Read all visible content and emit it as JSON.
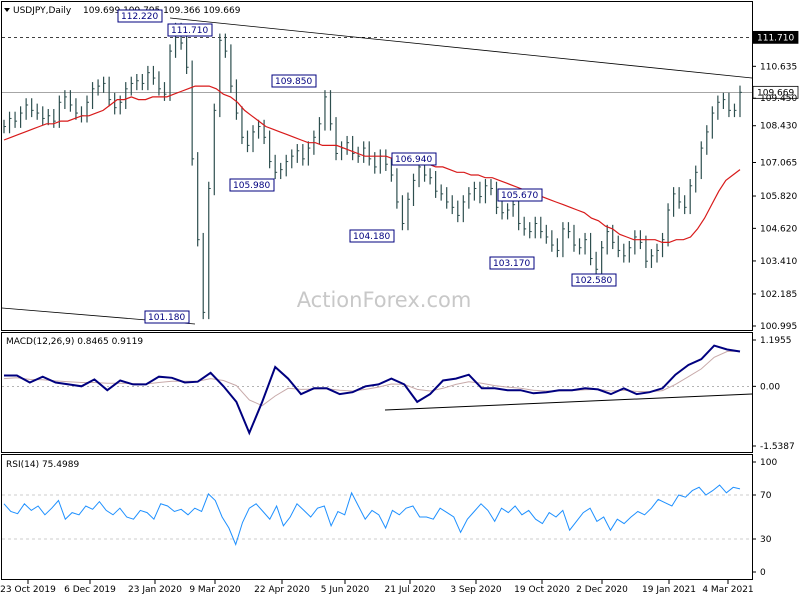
{
  "header": {
    "symbol": "USDJPY,Daily",
    "ohlc": "109.699 109.795 109.366 109.669"
  },
  "watermark": "ActionForex.com",
  "colors": {
    "price": "#2e4f4f",
    "ema": "#d81a1a",
    "macd": "#00007f",
    "signal": "#c8aaaa",
    "rsi": "#1e90ff",
    "trendline": "#000000",
    "price_label_bg": "#000000",
    "current_label_bg": "#ffffff"
  },
  "chart_data": [
    {
      "type": "line",
      "panel": "price",
      "title": "USDJPY,Daily",
      "ylim": [
        100.995,
        112.8
      ],
      "y_ticks": [
        "110.635",
        "109.450",
        "108.430",
        "107.065",
        "105.820",
        "104.620",
        "103.410",
        "102.185",
        "100.995"
      ],
      "x_ticks": [
        "23 Oct 2019",
        "6 Dec 2019",
        "23 Jan 2020",
        "9 Mar 2020",
        "22 Apr 2020",
        "5 Jun 2020",
        "21 Jul 2020",
        "3 Sep 2020",
        "19 Oct 2020",
        "2 Dec 2020",
        "19 Jan 2021",
        "4 Mar 2021"
      ],
      "series": [
        {
          "values": [
            108.4,
            108.7,
            108.6,
            108.9,
            109.2,
            109.0,
            108.9,
            108.7,
            108.8,
            108.6,
            109.3,
            109.5,
            109.2,
            108.9,
            108.8,
            109.3,
            109.8,
            109.9,
            110.0,
            109.4,
            109.1,
            109.3,
            109.8,
            110.0,
            110.1,
            110.0,
            110.4,
            110.2,
            109.8,
            109.6,
            111.2,
            112.0,
            111.5,
            110.6,
            107.2,
            104.2,
            101.5,
            106.1,
            109.0,
            111.6,
            111.2,
            109.9,
            108.9,
            108.0,
            107.7,
            108.2,
            108.4,
            108.0,
            107.1,
            106.7,
            106.8,
            107.1,
            107.3,
            107.5,
            107.2,
            107.6,
            108.0,
            108.5,
            109.5,
            108.5,
            107.4,
            107.6,
            107.8,
            107.4,
            107.3,
            107.6,
            107.2,
            106.9,
            107.3,
            107.0,
            106.6,
            105.6,
            104.8,
            105.7,
            106.4,
            106.9,
            106.6,
            106.5,
            106.0,
            105.9,
            105.6,
            105.4,
            105.1,
            105.6,
            105.9,
            106.1,
            105.8,
            106.2,
            106.1,
            105.4,
            105.2,
            105.3,
            105.5,
            104.8,
            104.6,
            104.5,
            104.8,
            104.5,
            104.3,
            104.0,
            103.8,
            104.6,
            104.5,
            104.0,
            103.9,
            104.2,
            103.5,
            103.1,
            103.9,
            104.5,
            104.1,
            103.8,
            103.6,
            103.9,
            104.3,
            104.1,
            103.4,
            103.6,
            103.8,
            104.2,
            105.3,
            105.9,
            105.6,
            105.4,
            106.2,
            106.7,
            107.6,
            108.2,
            108.9,
            109.3,
            109.4,
            109.0,
            109.0,
            109.669
          ],
          "style": "ohlc-bars"
        },
        {
          "values": [
            107.9,
            108.0,
            108.1,
            108.2,
            108.3,
            108.4,
            108.5,
            108.5,
            108.6,
            108.6,
            108.7,
            108.8,
            108.8,
            108.9,
            109.0,
            109.2,
            109.4,
            109.4,
            109.5,
            109.4,
            109.4,
            109.5,
            109.5,
            109.5,
            109.6,
            109.7,
            109.8,
            109.9,
            109.9,
            109.9,
            109.8,
            109.6,
            109.5,
            109.3,
            109.0,
            108.8,
            108.6,
            108.4,
            108.3,
            108.2,
            108.1,
            108.0,
            107.9,
            107.8,
            107.8,
            107.7,
            107.7,
            107.7,
            107.6,
            107.5,
            107.4,
            107.3,
            107.3,
            107.3,
            107.3,
            107.2,
            107.2,
            107.1,
            107.1,
            107.0,
            107.0,
            106.9,
            106.9,
            106.8,
            106.7,
            106.7,
            106.6,
            106.6,
            106.5,
            106.5,
            106.4,
            106.3,
            106.2,
            106.1,
            106.0,
            105.9,
            105.8,
            105.7,
            105.6,
            105.5,
            105.4,
            105.3,
            105.2,
            105.0,
            104.9,
            104.7,
            104.6,
            104.4,
            104.3,
            104.2,
            104.2,
            104.2,
            104.2,
            104.1,
            104.1,
            104.2,
            104.2,
            104.3,
            104.6,
            105.0,
            105.5,
            106.0,
            106.4,
            106.6,
            106.8
          ],
          "name": ""
        }
      ],
      "levels": [
        111.71,
        109.669
      ],
      "annotations": [
        "112.220",
        "111.710",
        "109.850",
        "105.980",
        "101.180",
        "106.940",
        "104.180",
        "105.670",
        "103.170",
        "102.580"
      ]
    },
    {
      "type": "line",
      "panel": "macd",
      "title": "MACD(12,26,9) 0.8465 0.9119",
      "ylim": [
        -1.5387,
        1.1955
      ],
      "y_ticks": [
        "1.1955",
        "0.00",
        "-1.5387"
      ],
      "series": [
        {
          "name": "",
          "values": [
            0.28,
            0.28,
            0.1,
            0.25,
            0.1,
            0.05,
            0.0,
            0.18,
            -0.1,
            0.15,
            0.05,
            0.05,
            0.25,
            0.22,
            0.1,
            0.12,
            0.35,
            0.0,
            -0.4,
            -1.2,
            -0.4,
            0.5,
            0.2,
            -0.2,
            -0.05,
            -0.05,
            -0.2,
            -0.15,
            0.0,
            0.05,
            0.2,
            0.05,
            -0.4,
            -0.2,
            0.15,
            0.2,
            0.3,
            -0.05,
            -0.05,
            -0.1,
            -0.1,
            -0.18,
            -0.15,
            -0.1,
            -0.1,
            -0.05,
            -0.08,
            -0.2,
            -0.05,
            -0.2,
            -0.15,
            -0.05,
            0.3,
            0.55,
            0.7,
            1.05,
            0.95,
            0.9
          ]
        },
        {
          "name": "",
          "values": [
            0.2,
            0.22,
            0.18,
            0.17,
            0.14,
            0.12,
            0.1,
            0.1,
            0.08,
            0.08,
            0.07,
            0.06,
            0.1,
            0.13,
            0.13,
            0.13,
            0.2,
            0.15,
            0.02,
            -0.35,
            -0.5,
            -0.25,
            -0.05,
            -0.08,
            -0.07,
            -0.06,
            -0.1,
            -0.12,
            -0.08,
            -0.02,
            0.06,
            0.05,
            -0.08,
            -0.12,
            -0.05,
            0.05,
            0.12,
            0.08,
            0.02,
            -0.02,
            -0.05,
            -0.1,
            -0.12,
            -0.12,
            -0.11,
            -0.09,
            -0.08,
            -0.12,
            -0.1,
            -0.13,
            -0.14,
            -0.11,
            0.05,
            0.25,
            0.45,
            0.75,
            0.9,
            0.91
          ]
        }
      ]
    },
    {
      "type": "line",
      "panel": "rsi",
      "title": "RSI(14) 75.4989",
      "ylim": [
        0,
        100
      ],
      "y_ticks": [
        "100",
        "70",
        "30",
        "0"
      ],
      "series": [
        {
          "name": "",
          "values": [
            62,
            55,
            53,
            62,
            56,
            60,
            52,
            58,
            65,
            48,
            54,
            52,
            60,
            57,
            64,
            56,
            52,
            58,
            50,
            48,
            56,
            54,
            48,
            62,
            60,
            55,
            57,
            52,
            58,
            55,
            71,
            65,
            50,
            40,
            25,
            45,
            58,
            62,
            55,
            48,
            60,
            42,
            50,
            62,
            56,
            50,
            58,
            60,
            42,
            55,
            52,
            72,
            60,
            48,
            56,
            52,
            40,
            56,
            52,
            58,
            60,
            50,
            50,
            48,
            58,
            54,
            50,
            36,
            48,
            55,
            62,
            56,
            46,
            58,
            54,
            60,
            52,
            56,
            48,
            44,
            54,
            50,
            56,
            38,
            46,
            54,
            58,
            46,
            50,
            38,
            48,
            44,
            50,
            55,
            52,
            58,
            66,
            63,
            60,
            70,
            68,
            74,
            77,
            70,
            74,
            79,
            72,
            77,
            75.5
          ]
        }
      ]
    }
  ]
}
